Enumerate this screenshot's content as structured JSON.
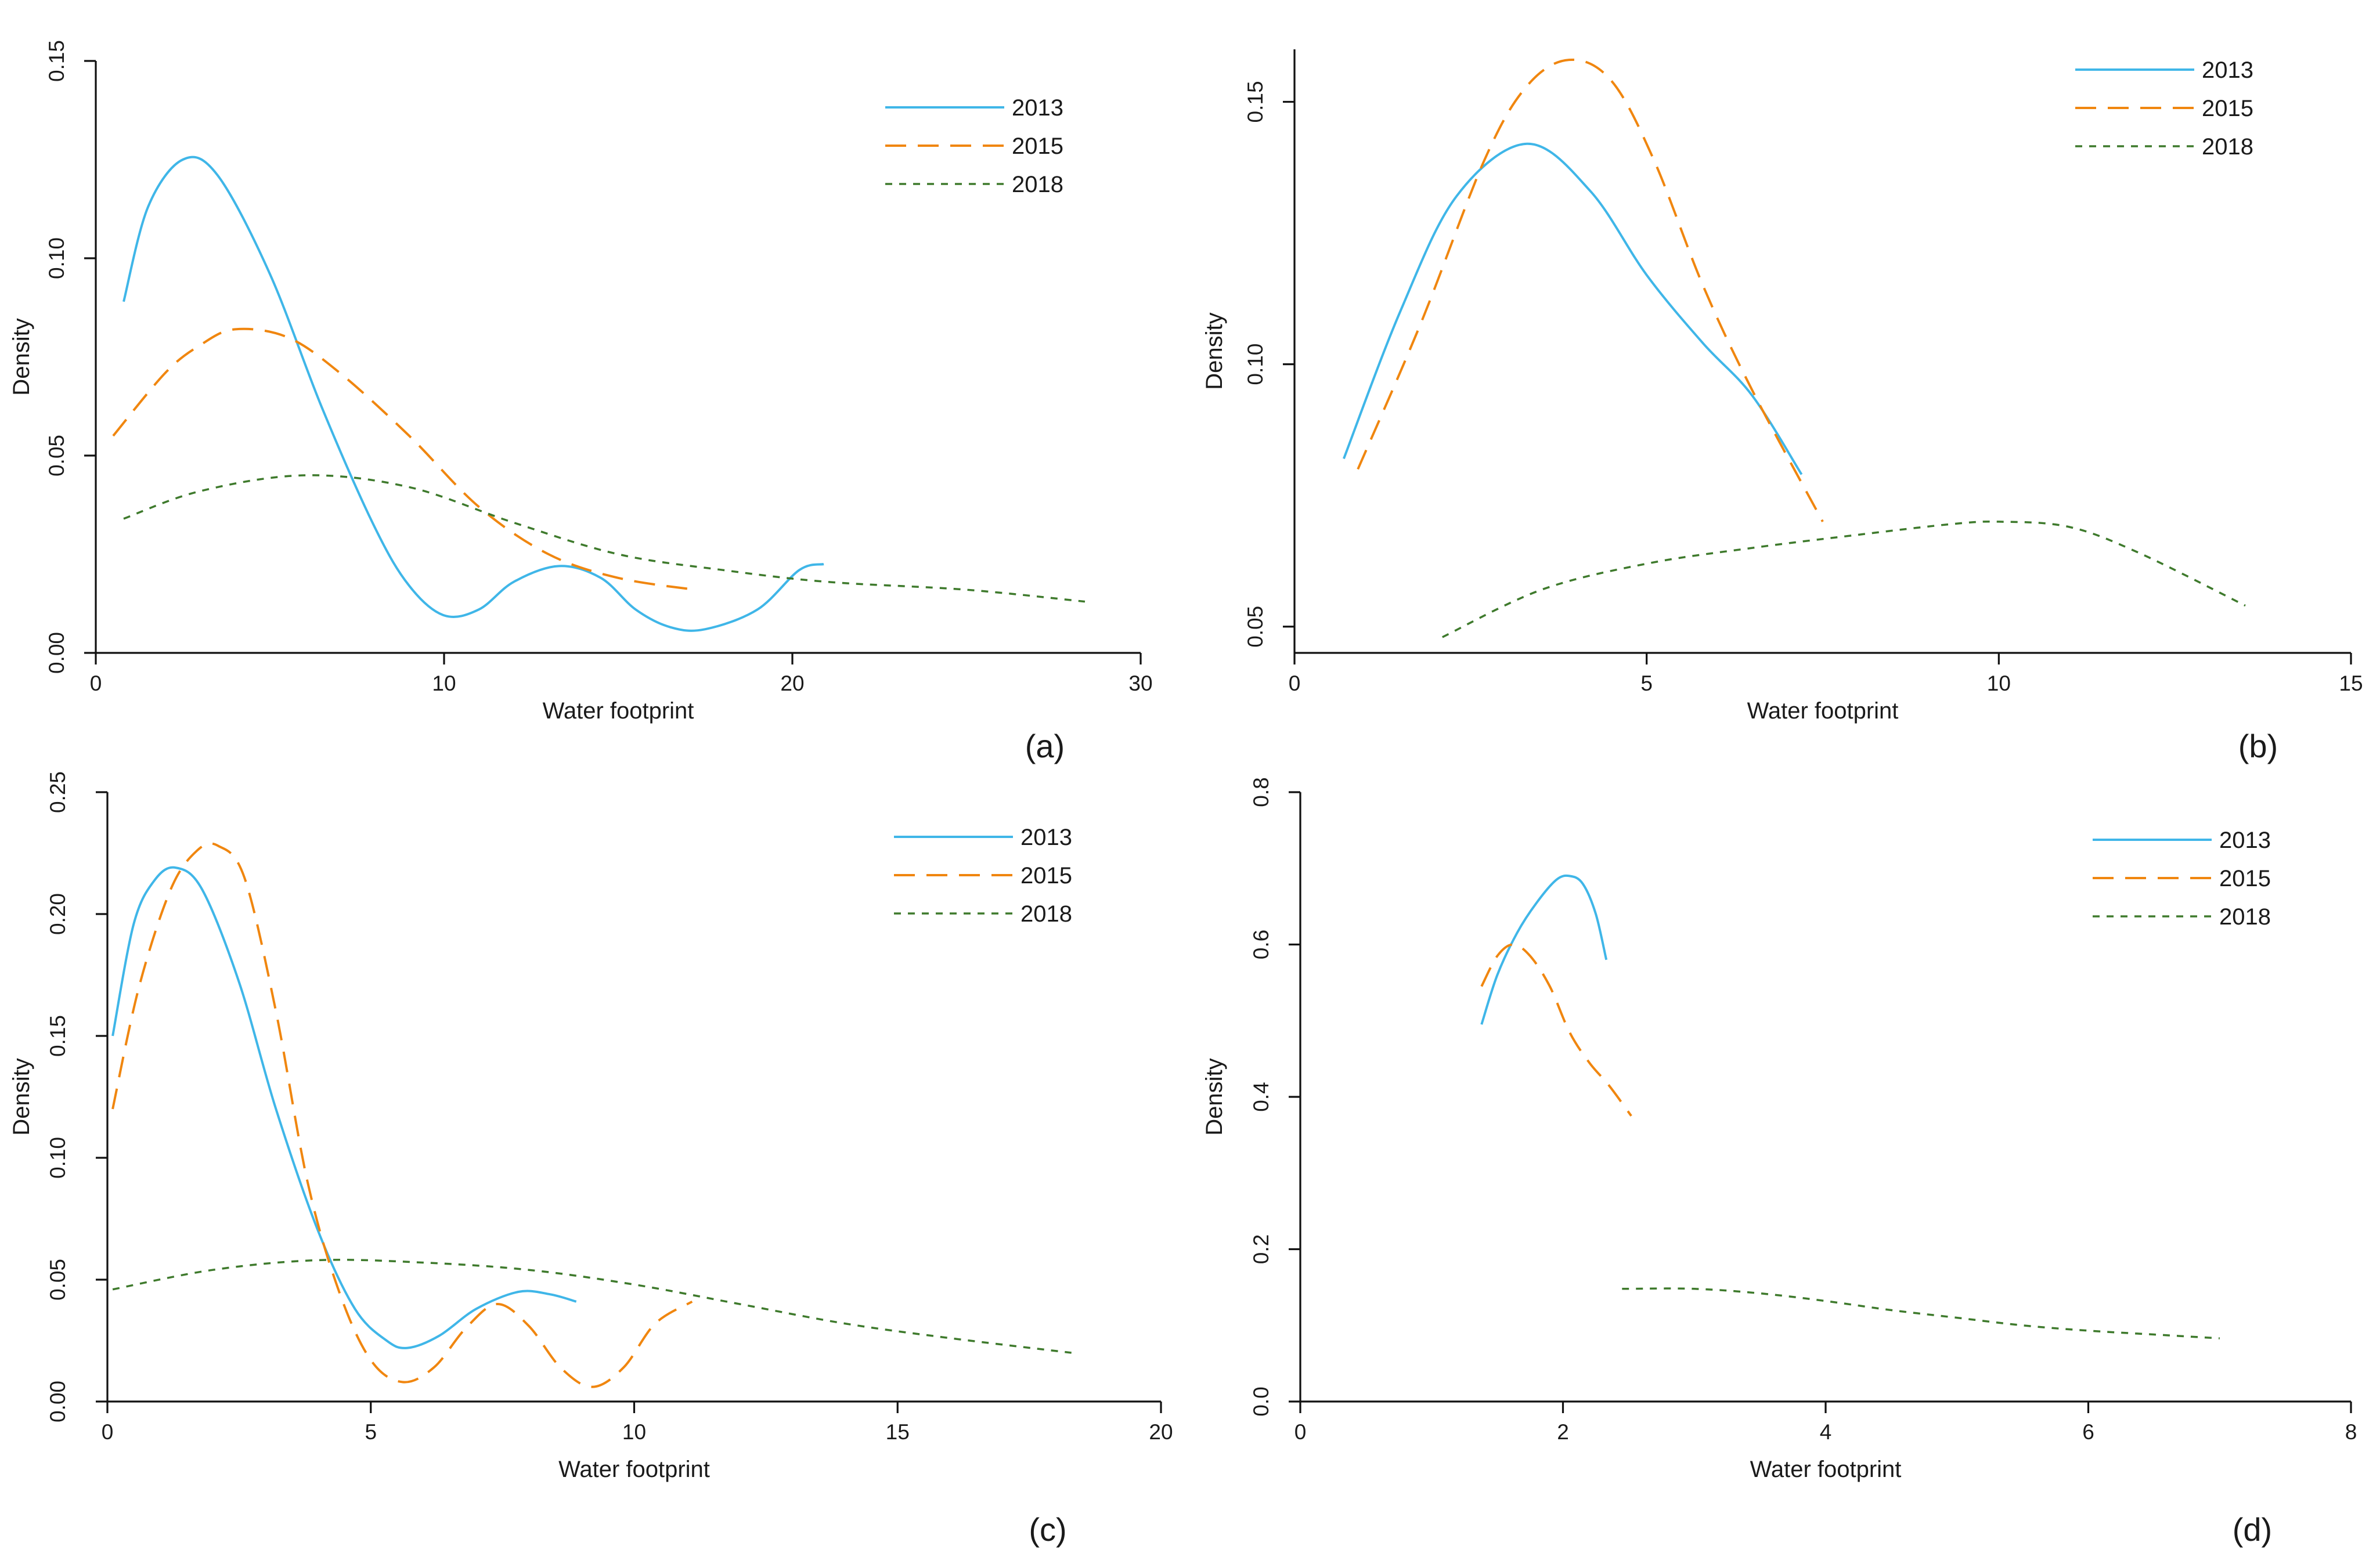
{
  "colors": {
    "s2013": "#3fb6e8",
    "s2015": "#f0860f",
    "s2018": "#3e7a2c"
  },
  "chart_data": [
    {
      "type": "line",
      "label": "(a)",
      "xlabel": "Water footprint",
      "ylabel": "Density",
      "xlim": [
        0,
        30
      ],
      "ylim": [
        0,
        0.15
      ],
      "xticks": [
        0,
        10,
        20,
        30
      ],
      "yticks": [
        "0.00",
        "0.05",
        "0.10",
        "0.15"
      ],
      "legend_position": "top-right",
      "series": [
        {
          "name": "2013",
          "x": [
            0.8,
            1.5,
            2.5,
            3.5,
            5,
            6.5,
            8,
            9,
            10,
            11,
            12,
            13.3,
            14.5,
            15.5,
            16.5,
            17.5,
            19,
            20.2,
            20.9
          ],
          "y": [
            0.089,
            0.113,
            0.125,
            0.121,
            0.096,
            0.062,
            0.032,
            0.017,
            0.0095,
            0.011,
            0.018,
            0.022,
            0.019,
            0.011,
            0.0065,
            0.006,
            0.011,
            0.021,
            0.0225
          ]
        },
        {
          "name": "2015",
          "x": [
            0.5,
            2,
            3,
            4,
            5.5,
            7,
            9,
            11,
            13,
            15,
            17.2
          ],
          "y": [
            0.055,
            0.071,
            0.078,
            0.082,
            0.08,
            0.071,
            0.055,
            0.037,
            0.025,
            0.019,
            0.016
          ]
        },
        {
          "name": "2018",
          "x": [
            0.8,
            3,
            6,
            9,
            12,
            15,
            18,
            21,
            25,
            28.4
          ],
          "y": [
            0.034,
            0.041,
            0.045,
            0.042,
            0.033,
            0.025,
            0.021,
            0.018,
            0.016,
            0.013
          ]
        }
      ]
    },
    {
      "type": "line",
      "label": "(b)",
      "xlabel": "Water footprint",
      "ylabel": "Density",
      "xlim": [
        0,
        15
      ],
      "ylim": [
        0.045,
        0.16
      ],
      "xticks": [
        0,
        5,
        10,
        15
      ],
      "yticks": [
        "0.05",
        "0.10",
        "0.15"
      ],
      "legend_position": "top-right",
      "series": [
        {
          "name": "2013",
          "x": [
            0.7,
            1.5,
            2.3,
            3.3,
            4.2,
            5,
            5.8,
            6.5,
            7.2
          ],
          "y": [
            0.082,
            0.11,
            0.132,
            0.142,
            0.133,
            0.117,
            0.104,
            0.094,
            0.079
          ]
        },
        {
          "name": "2015",
          "x": [
            0.9,
            1.8,
            2.7,
            3.3,
            3.9,
            4.5,
            5.1,
            5.8,
            6.5,
            7.5
          ],
          "y": [
            0.08,
            0.108,
            0.139,
            0.153,
            0.158,
            0.154,
            0.139,
            0.115,
            0.095,
            0.07
          ]
        },
        {
          "name": "2018",
          "x": [
            2.1,
            3.5,
            5,
            6.5,
            8,
            9.3,
            10,
            11,
            12,
            13.5
          ],
          "y": [
            0.048,
            0.057,
            0.062,
            0.065,
            0.0675,
            0.0695,
            0.07,
            0.069,
            0.064,
            0.054
          ]
        }
      ]
    },
    {
      "type": "line",
      "label": "(c)",
      "xlabel": "Water footprint",
      "ylabel": "Density",
      "xlim": [
        0,
        20
      ],
      "ylim": [
        0,
        0.25
      ],
      "xticks": [
        0,
        5,
        10,
        15,
        20
      ],
      "yticks": [
        "0.00",
        "0.05",
        "0.10",
        "0.15",
        "0.20",
        "0.25"
      ],
      "legend_position": "top-right",
      "series": [
        {
          "name": "2013",
          "x": [
            0.1,
            0.5,
            0.9,
            1.3,
            1.8,
            2.5,
            3.2,
            4,
            4.7,
            5.3,
            5.7,
            6.3,
            7,
            7.8,
            8.4,
            8.9
          ],
          "y": [
            0.15,
            0.196,
            0.214,
            0.219,
            0.21,
            0.172,
            0.12,
            0.07,
            0.038,
            0.025,
            0.022,
            0.027,
            0.038,
            0.045,
            0.044,
            0.041
          ]
        },
        {
          "name": "2015",
          "x": [
            0.1,
            0.6,
            1.2,
            1.7,
            2.1,
            2.6,
            3.2,
            3.8,
            4.4,
            5,
            5.6,
            6.2,
            6.8,
            7.4,
            8,
            8.6,
            9.2,
            9.8,
            10.4,
            11.1
          ],
          "y": [
            0.12,
            0.17,
            0.21,
            0.226,
            0.228,
            0.215,
            0.16,
            0.09,
            0.045,
            0.017,
            0.008,
            0.014,
            0.03,
            0.04,
            0.031,
            0.014,
            0.006,
            0.014,
            0.032,
            0.041
          ]
        },
        {
          "name": "2018",
          "x": [
            0.1,
            2,
            4,
            6,
            8,
            10,
            12,
            14,
            16,
            18.3
          ],
          "y": [
            0.046,
            0.054,
            0.058,
            0.057,
            0.054,
            0.048,
            0.04,
            0.032,
            0.026,
            0.02
          ]
        }
      ]
    },
    {
      "type": "line",
      "label": "(d)",
      "xlabel": "Water footprint",
      "ylabel": "Density",
      "xlim": [
        0,
        8
      ],
      "ylim": [
        0,
        0.8
      ],
      "xticks": [
        0,
        2,
        4,
        6,
        8
      ],
      "yticks": [
        "0.0",
        "0.2",
        "0.4",
        "0.6",
        "0.8"
      ],
      "legend_position": "top-right",
      "series": [
        {
          "name": "2013",
          "x": [
            1.38,
            1.5,
            1.65,
            1.8,
            1.95,
            2.05,
            2.15,
            2.25,
            2.33
          ],
          "y": [
            0.495,
            0.56,
            0.615,
            0.655,
            0.685,
            0.69,
            0.68,
            0.64,
            0.58
          ]
        },
        {
          "name": "2015",
          "x": [
            1.38,
            1.5,
            1.62,
            1.75,
            1.9,
            2.05,
            2.2,
            2.35,
            2.52
          ],
          "y": [
            0.545,
            0.585,
            0.6,
            0.585,
            0.545,
            0.485,
            0.445,
            0.415,
            0.375
          ]
        },
        {
          "name": "2018",
          "x": [
            2.45,
            3,
            3.5,
            4,
            4.5,
            5,
            5.5,
            6,
            6.5,
            7
          ],
          "y": [
            0.148,
            0.148,
            0.142,
            0.132,
            0.12,
            0.11,
            0.1,
            0.093,
            0.088,
            0.083
          ]
        }
      ]
    }
  ]
}
